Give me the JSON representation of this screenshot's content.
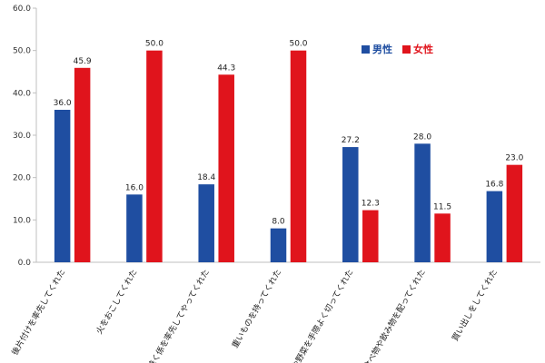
{
  "chart_data": {
    "type": "bar",
    "categories": [
      "後片付けを率先してくれた",
      "火をおこしてくれた",
      "焼く係を率先してやってくれた",
      "重いものを持ってくれた",
      "肉や野菜を手際よく切ってくれた",
      "食べ物や飲み物を配ってくれた",
      "買い出しをしてくれた"
    ],
    "series": [
      {
        "name": "男性",
        "color": "#1f4ea1",
        "values": [
          36.0,
          16.0,
          18.4,
          8.0,
          27.2,
          28.0,
          16.8
        ],
        "labels": [
          "36.0",
          "16.0",
          "18.4",
          "8.0",
          "27.2",
          "28.0",
          "16.8"
        ]
      },
      {
        "name": "女性",
        "color": "#e0141c",
        "values": [
          45.9,
          50.0,
          44.3,
          50.0,
          12.3,
          11.5,
          23.0
        ],
        "labels": [
          "45.9",
          "50.0",
          "44.3",
          "50.0",
          "12.3",
          "11.5",
          "23.0"
        ]
      }
    ],
    "title": "",
    "xlabel": "",
    "ylabel": "",
    "ylim": [
      0,
      60
    ],
    "yticks": [
      "0.0",
      "10.0",
      "20.0",
      "30.0",
      "40.0",
      "50.0",
      "60.0"
    ],
    "grid": false,
    "legend_position": "top-right"
  }
}
